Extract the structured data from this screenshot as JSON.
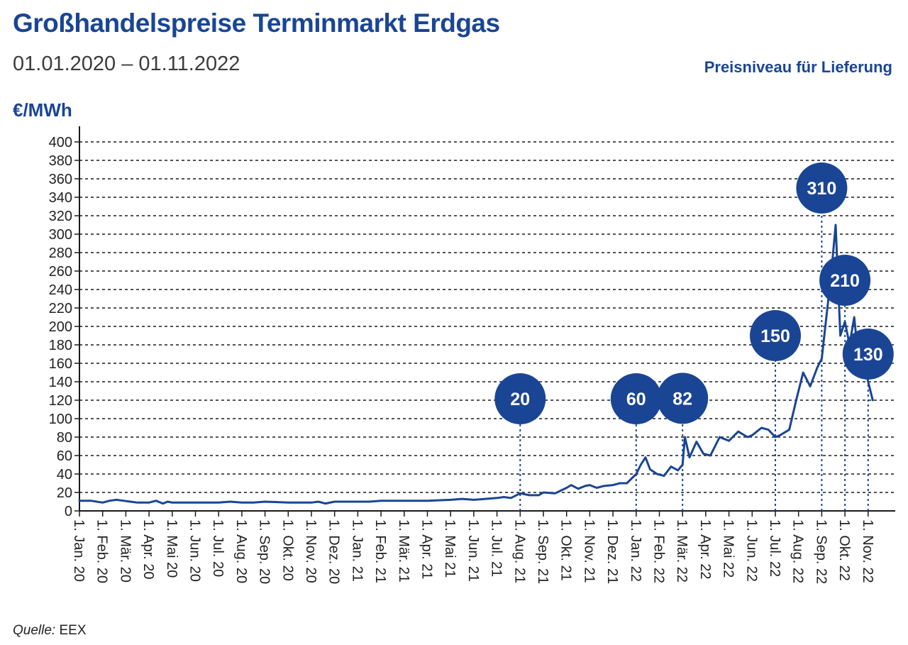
{
  "header": {
    "title": "Großhandelspreise Terminmarkt Erdgas",
    "subtitle": "01.01.2020 – 01.11.2022",
    "note": "Preisniveau für Lieferung",
    "unit": "€/MWh"
  },
  "source": {
    "label": "Quelle:",
    "value": "EEX"
  },
  "colors": {
    "line": "#1a4595",
    "bubble": "#1a4595",
    "grid": "#1a1a1a",
    "text": "#222222"
  },
  "chart_data": {
    "type": "line",
    "title": "Großhandelspreise Terminmarkt Erdgas",
    "subtitle": "01.01.2020 – 01.11.2022",
    "ylabel": "€/MWh",
    "xlabel": "",
    "ylim": [
      0,
      400
    ],
    "yticks": [
      0,
      20,
      40,
      60,
      80,
      100,
      120,
      140,
      160,
      180,
      200,
      220,
      240,
      260,
      280,
      300,
      320,
      340,
      360,
      380,
      400
    ],
    "grid": true,
    "xtick_labels": [
      "1. Jan. 20",
      "1. Feb. 20",
      "1. Mär. 20",
      "1. Apr. 20",
      "1. Mai 20",
      "1. Jun. 20",
      "1. Jul. 20",
      "1. Aug. 20",
      "1. Sep. 20",
      "1. Okt. 20",
      "1. Nov. 20",
      "1. Dez. 20",
      "1. Jan. 21",
      "1. Feb. 21",
      "1. Mär. 21",
      "1. Apr. 21",
      "1. Mai 21",
      "1. Jun. 21",
      "1. Jul. 21",
      "1. Aug. 21",
      "1. Sep. 21",
      "1. Okt. 21",
      "1. Nov. 21",
      "1. Dez. 21",
      "1. Jan. 22",
      "1. Feb. 22",
      "1. Mär. 22",
      "1. Apr. 22",
      "1. Mai 22",
      "1. Jun. 22",
      "1. Jul. 22",
      "1. Aug. 22",
      "1. Sep. 22",
      "1. Okt. 22",
      "1. Nov. 22"
    ],
    "series": [
      {
        "x": [
          0,
          0.5,
          1,
          1.3,
          1.6,
          1.9,
          2.2,
          2.5,
          3,
          3.3,
          3.6,
          3.8,
          4,
          5,
          6,
          6.5,
          7,
          7.5,
          8,
          9,
          10,
          10.3,
          10.6,
          11,
          12,
          12.5,
          13,
          14,
          15,
          16,
          16.5,
          17,
          17.5,
          18,
          18.3,
          18.6,
          19,
          19.4,
          19.8,
          20,
          20.5,
          21,
          21.2,
          21.5,
          21.8,
          22,
          22.3,
          22.6,
          23,
          23.3,
          23.6,
          24,
          24.2,
          24.4,
          24.6,
          24.9,
          25.2,
          25.5,
          25.8,
          26,
          26.1,
          26.3,
          26.6,
          26.9,
          27.2,
          27.6,
          28,
          28.4,
          28.8,
          29,
          29.4,
          29.7,
          30,
          30.2,
          30.6,
          30.9,
          31.2,
          31.5,
          31.8,
          32,
          32.2,
          32.4,
          32.6,
          32.8,
          33,
          33.2,
          33.4,
          33.6,
          33.8,
          34,
          34.2
        ],
        "values": [
          11,
          11,
          9,
          11,
          12,
          11,
          10,
          9,
          9,
          11,
          8,
          10,
          9,
          9,
          9,
          10,
          9,
          9,
          10,
          9,
          9,
          10,
          8,
          10,
          10,
          10,
          11,
          11,
          11,
          12,
          13,
          12,
          13,
          14,
          15,
          14,
          19,
          17,
          17,
          20,
          19,
          25,
          28,
          24,
          27,
          28,
          25,
          27,
          28,
          30,
          30,
          40,
          50,
          58,
          45,
          40,
          38,
          48,
          44,
          50,
          80,
          58,
          75,
          62,
          60,
          80,
          76,
          86,
          80,
          82,
          90,
          88,
          80,
          82,
          88,
          120,
          150,
          135,
          155,
          165,
          210,
          255,
          310,
          190,
          205,
          180,
          210,
          160,
          165,
          140,
          120
        ]
      }
    ],
    "annotations": [
      {
        "x": 19,
        "value": 20,
        "label": "20"
      },
      {
        "x": 24,
        "value": 60,
        "label": "60"
      },
      {
        "x": 26,
        "value": 82,
        "label": "82"
      },
      {
        "x": 30,
        "value": 150,
        "label": "150"
      },
      {
        "x": 32,
        "value": 310,
        "label": "310"
      },
      {
        "x": 33,
        "value": 210,
        "label": "210"
      },
      {
        "x": 34,
        "value": 130,
        "label": "130"
      }
    ]
  }
}
